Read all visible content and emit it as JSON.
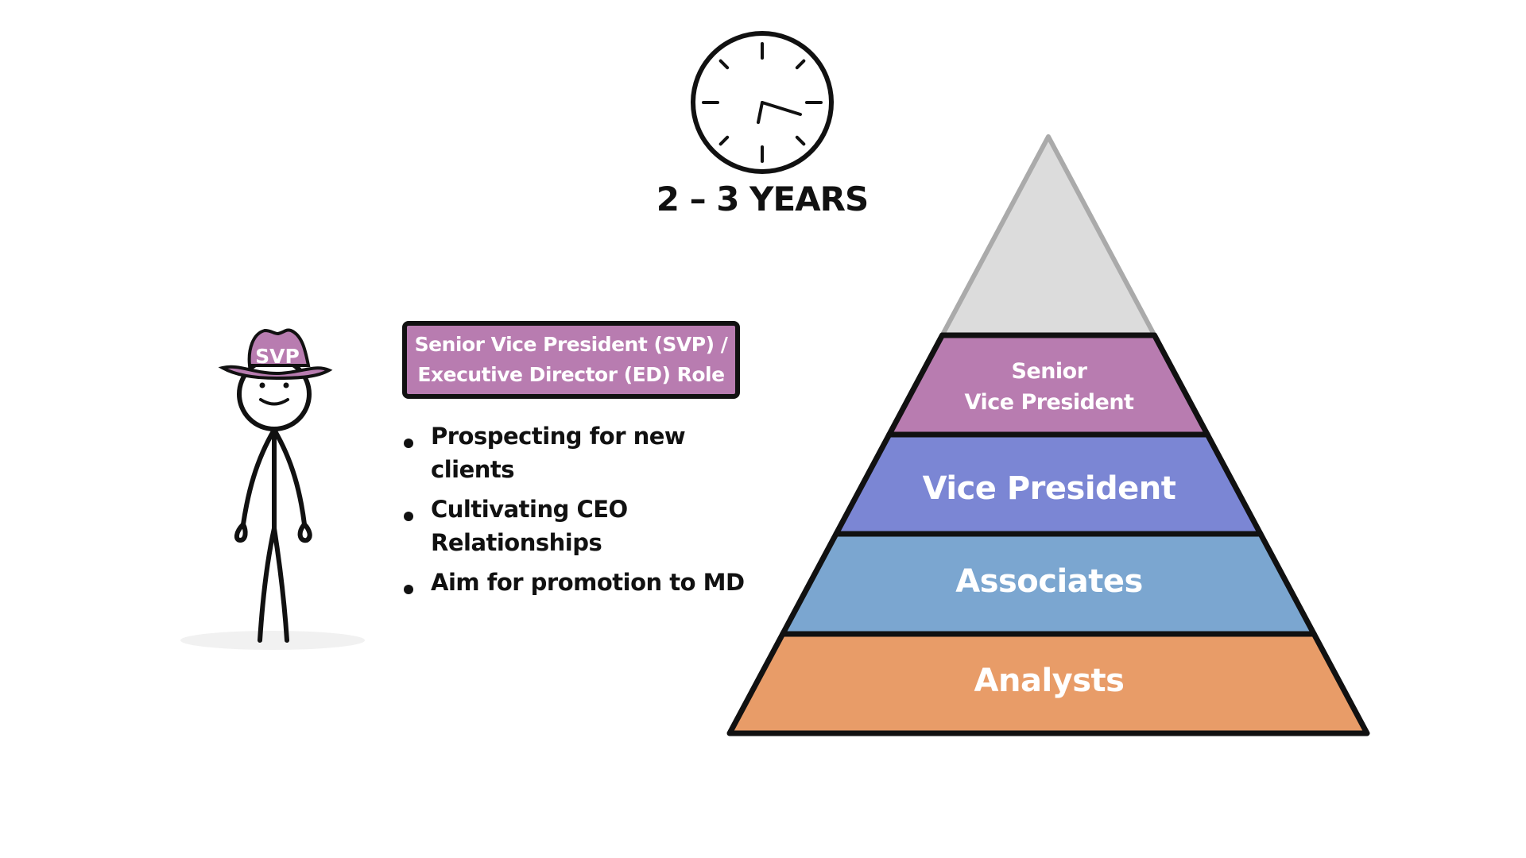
{
  "clock": {
    "icon": "clock-icon",
    "duration_label": "2 – 3 YEARS"
  },
  "character": {
    "hat_label": "SVP",
    "hat_color": "#b87cb0"
  },
  "role_box": {
    "line1": "Senior Vice President (SVP) /",
    "line2": "Executive Director (ED) Role",
    "color": "#b87cb0"
  },
  "responsibilities": [
    "Prospecting for new clients",
    "Cultivating CEO Relationships",
    "Aim for promotion to MD"
  ],
  "pyramid": {
    "levels": [
      {
        "label": "",
        "color": "#dcdcdc"
      },
      {
        "label_line1": "Senior",
        "label_line2": "Vice President",
        "color": "#b87cb0"
      },
      {
        "label": "Vice President",
        "color": "#7b86d4"
      },
      {
        "label": "Associates",
        "color": "#7ba6d0"
      },
      {
        "label": "Analysts",
        "color": "#e89c68"
      }
    ]
  }
}
